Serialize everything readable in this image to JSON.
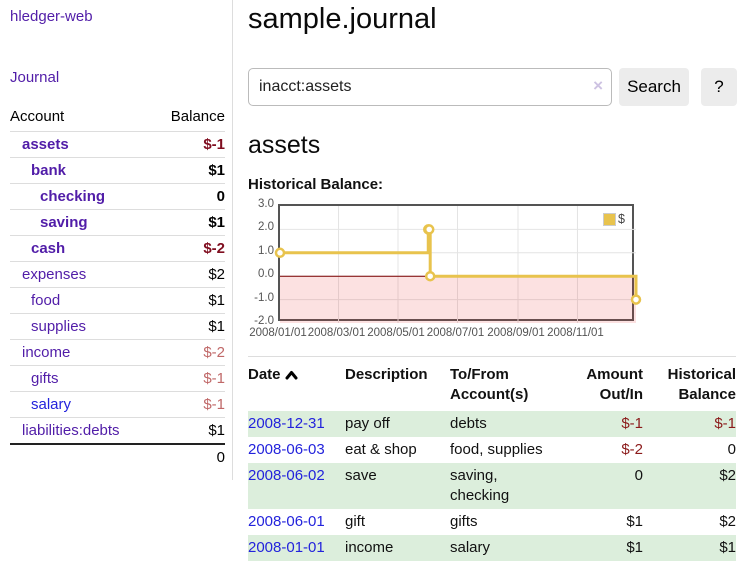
{
  "app": {
    "title": "hledger-web"
  },
  "colors": {
    "purple": "#511da8",
    "link_blue": "#2323dc",
    "negative": "#8b1a1a",
    "negative_strong": "#7f0d1f",
    "negative_soft": "#c06868",
    "accent_gold": "#e8c34d",
    "row_green": "#dceedc"
  },
  "sidebar": {
    "journal_link": "Journal",
    "header": {
      "account": "Account",
      "balance": "Balance"
    },
    "accounts": [
      {
        "name": "assets",
        "balance": "$-1",
        "depth": 1
      },
      {
        "name": "bank",
        "balance": "$1",
        "depth": 2
      },
      {
        "name": "checking",
        "balance": "0",
        "depth": 3
      },
      {
        "name": "saving",
        "balance": "$1",
        "depth": 3
      },
      {
        "name": "cash",
        "balance": "$-2",
        "depth": 2
      },
      {
        "name": "expenses",
        "balance": "$2",
        "depth": 1
      },
      {
        "name": "food",
        "balance": "$1",
        "depth": 2
      },
      {
        "name": "supplies",
        "balance": "$1",
        "depth": 2
      },
      {
        "name": "income",
        "balance": "$-2",
        "depth": 1
      },
      {
        "name": "gifts",
        "balance": "$-1",
        "depth": 2
      },
      {
        "name": "salary",
        "balance": "$-1",
        "depth": 2
      },
      {
        "name": "liabilities:debts",
        "balance": "$1",
        "depth": 1
      }
    ],
    "total": "0"
  },
  "main": {
    "title": "sample.journal",
    "search": {
      "value": "inacct:assets",
      "clear_icon": "×",
      "button": "Search",
      "help_button": "?"
    },
    "account_heading": "assets",
    "chart_label": "Historical Balance:"
  },
  "chart_data": {
    "type": "line",
    "title": "Historical Balance",
    "legend_position": "top-right",
    "grid": true,
    "ylim": [
      -2,
      3
    ],
    "x_range": [
      "2008-01-01",
      "2008-12-31"
    ],
    "series": [
      {
        "name": "$",
        "color": "#e8c34d",
        "points": [
          [
            "2008-01-01",
            1
          ],
          [
            "2008-06-01",
            2
          ],
          [
            "2008-06-02",
            2
          ],
          [
            "2008-06-03",
            0
          ],
          [
            "2008-12-31",
            -1
          ]
        ]
      }
    ],
    "y_ticks": [
      {
        "label": "3.0",
        "value": 3
      },
      {
        "label": "2.0",
        "value": 2
      },
      {
        "label": "1.0",
        "value": 1
      },
      {
        "label": "0.0",
        "value": 0
      },
      {
        "label": "-1.0",
        "value": -1
      },
      {
        "label": "-2.0",
        "value": -2
      }
    ],
    "x_ticks": [
      {
        "label": "2008/01/01",
        "date": "2008-01-01"
      },
      {
        "label": "2008/03/01",
        "date": "2008-03-01"
      },
      {
        "label": "2008/05/01",
        "date": "2008-05-01"
      },
      {
        "label": "2008/07/01",
        "date": "2008-07-01"
      },
      {
        "label": "2008/09/01",
        "date": "2008-09-01"
      },
      {
        "label": "2008/11/01",
        "date": "2008-11-01"
      }
    ],
    "colors": {
      "negative_fill": "rgba(232,40,40,0.14)",
      "zero_line": "#7b0000",
      "grid_line": "#e4e4e4"
    }
  },
  "register": {
    "headers": [
      {
        "l1": "Date",
        "l2": ""
      },
      {
        "l1": "Description",
        "l2": ""
      },
      {
        "l1": "To/From",
        "l2": "Account(s)"
      },
      {
        "l1": "Amount",
        "l2": "Out/In"
      },
      {
        "l1": "Historical",
        "l2": "Balance"
      }
    ],
    "rows": [
      {
        "date": "2008-12-31",
        "description": "pay off",
        "accounts": "debts",
        "amount": "$-1",
        "balance": "$-1"
      },
      {
        "date": "2008-06-03",
        "description": "eat & shop",
        "accounts": "food, supplies",
        "amount": "$-2",
        "balance": "0"
      },
      {
        "date": "2008-06-02",
        "description": "save",
        "accounts": "saving, checking",
        "amount": "0",
        "balance": "$2"
      },
      {
        "date": "2008-06-01",
        "description": "gift",
        "accounts": "gifts",
        "amount": "$1",
        "balance": "$2"
      },
      {
        "date": "2008-01-01",
        "description": "income",
        "accounts": "salary",
        "amount": "$1",
        "balance": "$1"
      }
    ]
  }
}
